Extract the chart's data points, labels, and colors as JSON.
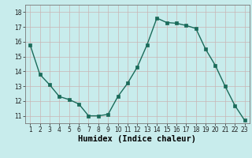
{
  "x": [
    1,
    2,
    3,
    4,
    5,
    6,
    7,
    8,
    9,
    10,
    11,
    12,
    13,
    14,
    15,
    16,
    17,
    18,
    19,
    20,
    21,
    22,
    23
  ],
  "y": [
    15.8,
    13.8,
    13.1,
    12.3,
    12.1,
    11.8,
    11.0,
    11.0,
    11.1,
    12.3,
    13.2,
    14.3,
    15.8,
    17.6,
    17.3,
    17.25,
    17.1,
    16.9,
    15.5,
    14.4,
    13.0,
    11.7,
    10.7
  ],
  "line_color": "#1a6b5a",
  "marker": "s",
  "markersize": 2.5,
  "linewidth": 1.0,
  "background_color": "#c8ecec",
  "grid_color": "#c8b4b4",
  "xlabel": "Humidex (Indice chaleur)",
  "ylim": [
    10.5,
    18.5
  ],
  "xlim": [
    0.5,
    23.5
  ],
  "yticks": [
    11,
    12,
    13,
    14,
    15,
    16,
    17,
    18
  ],
  "xticks": [
    1,
    2,
    3,
    4,
    5,
    6,
    7,
    8,
    9,
    10,
    11,
    12,
    13,
    14,
    15,
    16,
    17,
    18,
    19,
    20,
    21,
    22,
    23
  ],
  "tick_fontsize": 5.5,
  "xlabel_fontsize": 7.5
}
